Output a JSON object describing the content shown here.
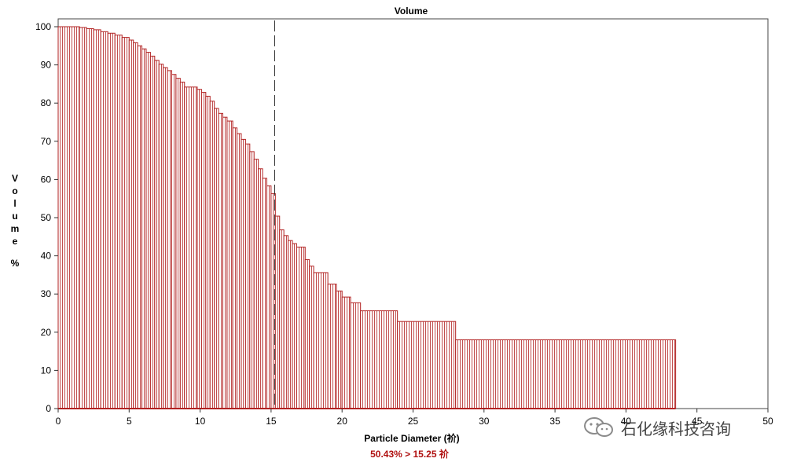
{
  "chart_data": {
    "type": "bar",
    "title": "Volume",
    "xlabel": "Particle Diameter (祄)",
    "ylabel": "Volume %",
    "xlim": [
      0,
      50
    ],
    "ylim": [
      0,
      100
    ],
    "xticks": [
      0,
      5,
      10,
      15,
      20,
      25,
      30,
      35,
      40,
      45,
      50
    ],
    "yticks": [
      0,
      10,
      20,
      30,
      40,
      50,
      60,
      70,
      80,
      90,
      100
    ],
    "grid": false,
    "color": "#b22222",
    "cursor_x": 15.25,
    "readout": "50.43% > 15.25 祄",
    "bins": [
      [
        0.0,
        1.5,
        100.0
      ],
      [
        1.5,
        2.0,
        99.8
      ],
      [
        2.0,
        2.5,
        99.5
      ],
      [
        2.5,
        3.0,
        99.2
      ],
      [
        3.0,
        3.5,
        98.7
      ],
      [
        3.5,
        4.0,
        98.3
      ],
      [
        4.0,
        4.5,
        97.8
      ],
      [
        4.5,
        5.0,
        97.2
      ],
      [
        5.0,
        5.3,
        96.5
      ],
      [
        5.3,
        5.6,
        95.8
      ],
      [
        5.6,
        5.9,
        95.0
      ],
      [
        5.9,
        6.2,
        94.2
      ],
      [
        6.2,
        6.5,
        93.3
      ],
      [
        6.5,
        6.8,
        92.3
      ],
      [
        6.8,
        7.1,
        91.2
      ],
      [
        7.1,
        7.4,
        90.2
      ],
      [
        7.4,
        7.7,
        89.3
      ],
      [
        7.7,
        8.0,
        88.5
      ],
      [
        8.0,
        8.3,
        87.5
      ],
      [
        8.3,
        8.6,
        86.5
      ],
      [
        8.6,
        8.9,
        85.5
      ],
      [
        8.9,
        9.8,
        84.2
      ],
      [
        9.8,
        10.1,
        83.6
      ],
      [
        10.1,
        10.4,
        82.8
      ],
      [
        10.4,
        10.7,
        81.8
      ],
      [
        10.7,
        11.0,
        80.5
      ],
      [
        11.0,
        11.3,
        78.6
      ],
      [
        11.3,
        11.6,
        77.3
      ],
      [
        11.6,
        11.9,
        76.3
      ],
      [
        11.9,
        12.3,
        75.3
      ],
      [
        12.3,
        12.6,
        73.5
      ],
      [
        12.6,
        12.9,
        72.0
      ],
      [
        12.9,
        13.2,
        70.5
      ],
      [
        13.2,
        13.5,
        69.3
      ],
      [
        13.5,
        13.8,
        67.3
      ],
      [
        13.8,
        14.1,
        65.3
      ],
      [
        14.1,
        14.4,
        62.8
      ],
      [
        14.4,
        14.7,
        60.3
      ],
      [
        14.7,
        15.0,
        58.3
      ],
      [
        15.0,
        15.3,
        56.3
      ],
      [
        15.3,
        15.6,
        50.4
      ],
      [
        15.6,
        15.9,
        46.8
      ],
      [
        15.9,
        16.2,
        45.3
      ],
      [
        16.2,
        16.5,
        44.0
      ],
      [
        16.5,
        16.8,
        43.2
      ],
      [
        16.8,
        17.4,
        42.3
      ],
      [
        17.4,
        17.7,
        39.0
      ],
      [
        17.7,
        18.0,
        37.3
      ],
      [
        18.0,
        19.0,
        35.6
      ],
      [
        19.0,
        19.6,
        32.6
      ],
      [
        19.6,
        20.0,
        30.8
      ],
      [
        20.0,
        20.6,
        29.2
      ],
      [
        20.6,
        21.3,
        27.7
      ],
      [
        21.3,
        23.9,
        25.6
      ],
      [
        23.9,
        28.0,
        22.8
      ],
      [
        28.0,
        43.5,
        18.0
      ]
    ]
  },
  "watermark": {
    "text": "石化缘科技咨询"
  }
}
